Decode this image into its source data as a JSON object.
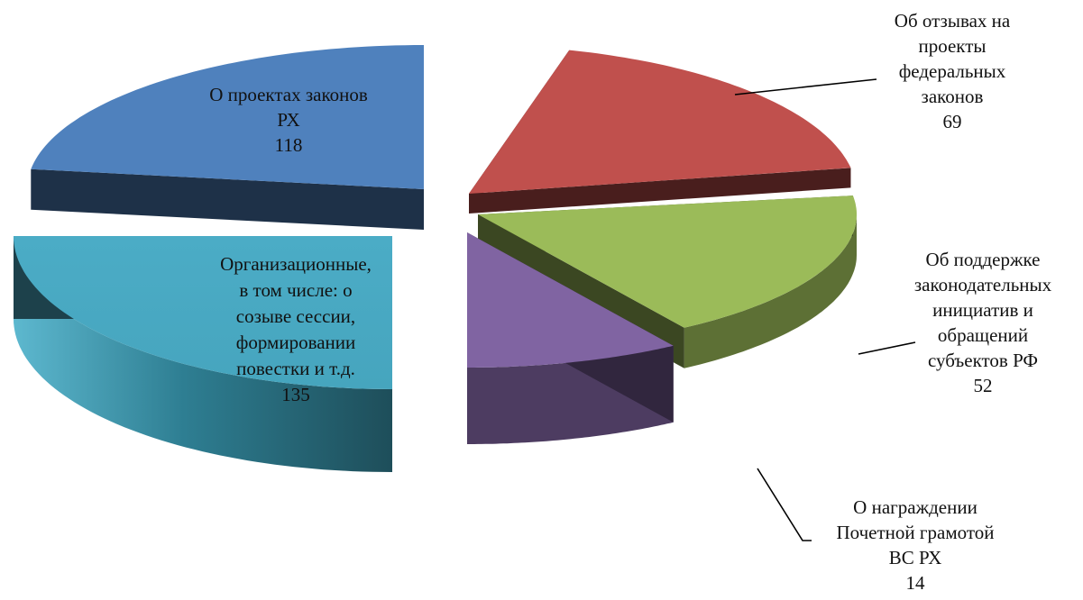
{
  "chart_data": {
    "type": "pie",
    "three_d": true,
    "exploded": true,
    "legend": "none",
    "slices": [
      {
        "label_lines": [
          "О проектах законов",
          "РХ"
        ],
        "value": 118,
        "value_text": "118",
        "color": "#4F81BD"
      },
      {
        "label_lines": [
          "Об отзывах на",
          "проекты",
          "федеральных",
          "законов"
        ],
        "value": 69,
        "value_text": "69",
        "color": "#C0504D"
      },
      {
        "label_lines": [
          "Об поддержке",
          "законодательных",
          "инициатив и",
          "обращений",
          "субъектов РФ"
        ],
        "value": 52,
        "value_text": "52",
        "color": "#9BBB59"
      },
      {
        "label_lines": [
          "О награждении",
          "Почетной грамотой",
          "ВС РХ"
        ],
        "value": 14,
        "value_text": "14",
        "color": "#8064A2"
      },
      {
        "label_lines": [
          "Организационные,",
          "в том числе: о",
          "созыве сессии,",
          "формировании",
          "повестки и т.д."
        ],
        "value": 135,
        "value_text": "135",
        "color": "#4BACC6"
      }
    ]
  }
}
